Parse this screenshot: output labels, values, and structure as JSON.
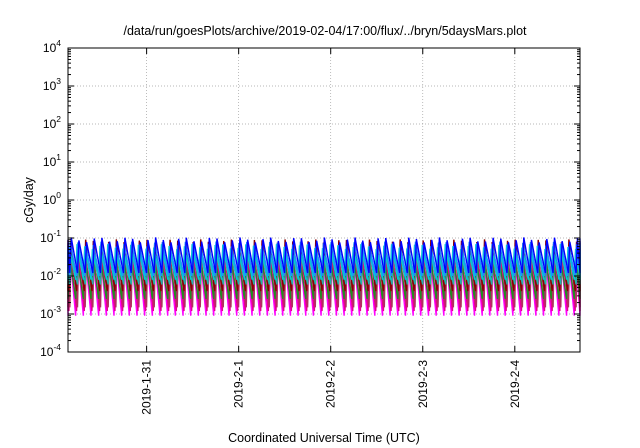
{
  "chart_data": {
    "type": "line",
    "title": "/data/run/goesPlots/archive/2019-02-04/17:00/flux/../bryn/5daysMars.plot",
    "xlabel": "Coordinated Universal Time (UTC)",
    "ylabel": "cGy/day",
    "yscale": "log",
    "ylim": [
      0.0001,
      10000
    ],
    "xlim": [
      "2019-01-30 03:30",
      "2019-02-04 17:00"
    ],
    "x_ticks": [
      "2019-1-31",
      "2019-2-1",
      "2019-2-2",
      "2019-2-3",
      "2019-2-4"
    ],
    "y_ticks": [
      {
        "base": "10",
        "exp": "-4",
        "value": 0.0001
      },
      {
        "base": "10",
        "exp": "-3",
        "value": 0.001
      },
      {
        "base": "10",
        "exp": "-2",
        "value": 0.01
      },
      {
        "base": "10",
        "exp": "-1",
        "value": 0.1
      },
      {
        "base": "10",
        "exp": "0",
        "value": 1
      },
      {
        "base": "10",
        "exp": "1",
        "value": 10
      },
      {
        "base": "10",
        "exp": "2",
        "value": 100
      },
      {
        "base": "10",
        "exp": "3",
        "value": 1000
      },
      {
        "base": "10",
        "exp": "4",
        "value": 10000
      }
    ],
    "grid": true,
    "legend": "none",
    "pattern": {
      "cycle_hours": 2.0,
      "description": "sawtooth per cycle: rapid rise to peak, slow decay to trough"
    },
    "series": [
      {
        "color": "#FF00FF",
        "peak": 0.05,
        "trough": 0.0009
      },
      {
        "color": "#E6008C",
        "peak": 0.045,
        "trough": 0.0012
      },
      {
        "color": "#B03060",
        "peak": 0.07,
        "trough": 0.0015
      },
      {
        "color": "#228B22",
        "peak": 0.035,
        "trough": 0.0025
      },
      {
        "color": "#8B0000",
        "peak": 0.08,
        "trough": 0.004
      },
      {
        "color": "#20B2AA",
        "peak": 0.04,
        "trough": 0.006
      },
      {
        "color": "#00CED1",
        "peak": 0.06,
        "trough": 0.008
      },
      {
        "color": "#1E90FF",
        "peak": 0.07,
        "trough": 0.01
      },
      {
        "color": "#0000FF",
        "peak": 0.09,
        "trough": 0.012
      }
    ]
  }
}
